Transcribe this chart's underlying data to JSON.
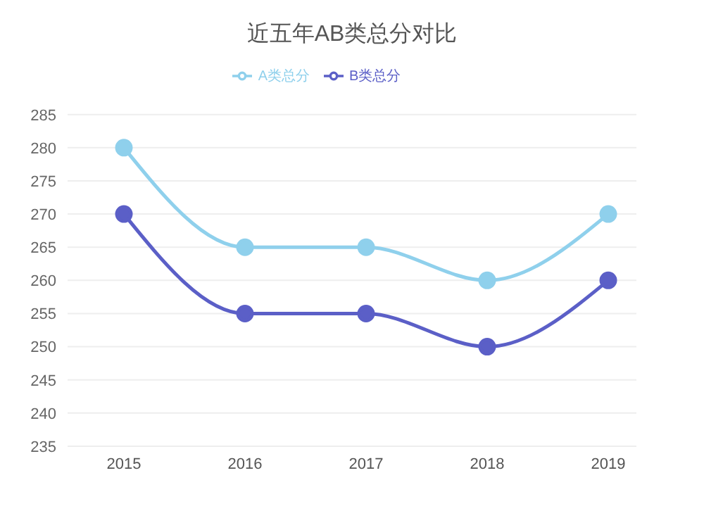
{
  "chart_data": {
    "type": "line",
    "title": "近五年AB类总分对比",
    "categories": [
      "2015",
      "2016",
      "2017",
      "2018",
      "2019"
    ],
    "series": [
      {
        "name": "A类总分",
        "color": "#8fd0ec",
        "values": [
          280,
          265,
          265,
          260,
          270
        ]
      },
      {
        "name": "B类总分",
        "color": "#5b5fc7",
        "values": [
          270,
          255,
          255,
          250,
          260
        ]
      }
    ],
    "ylim": [
      235,
      285
    ],
    "yticks": [
      235,
      240,
      245,
      250,
      255,
      260,
      265,
      270,
      275,
      280,
      285
    ],
    "grid": "y",
    "legend": "top",
    "marker": "circle",
    "line_style": "solid"
  }
}
